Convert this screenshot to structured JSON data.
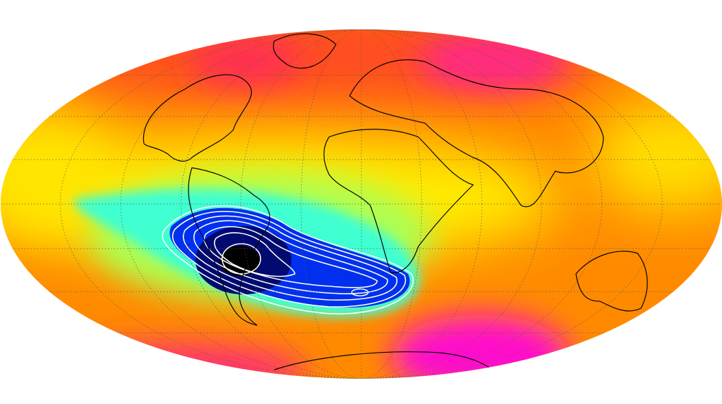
{
  "map": {
    "projection": "mollweide",
    "graticule": true,
    "colors": {
      "background": "#ffffff",
      "high": "#ff00cc",
      "mid_high": "#ff5a1e",
      "mid": "#ff9a00",
      "low_mid": "#ffee00",
      "low": "#33ffee",
      "lower": "#0022ee",
      "minimum": "#000000",
      "contour": "#ffffff",
      "coastline": "#000000",
      "graticule": "#555555"
    }
  }
}
